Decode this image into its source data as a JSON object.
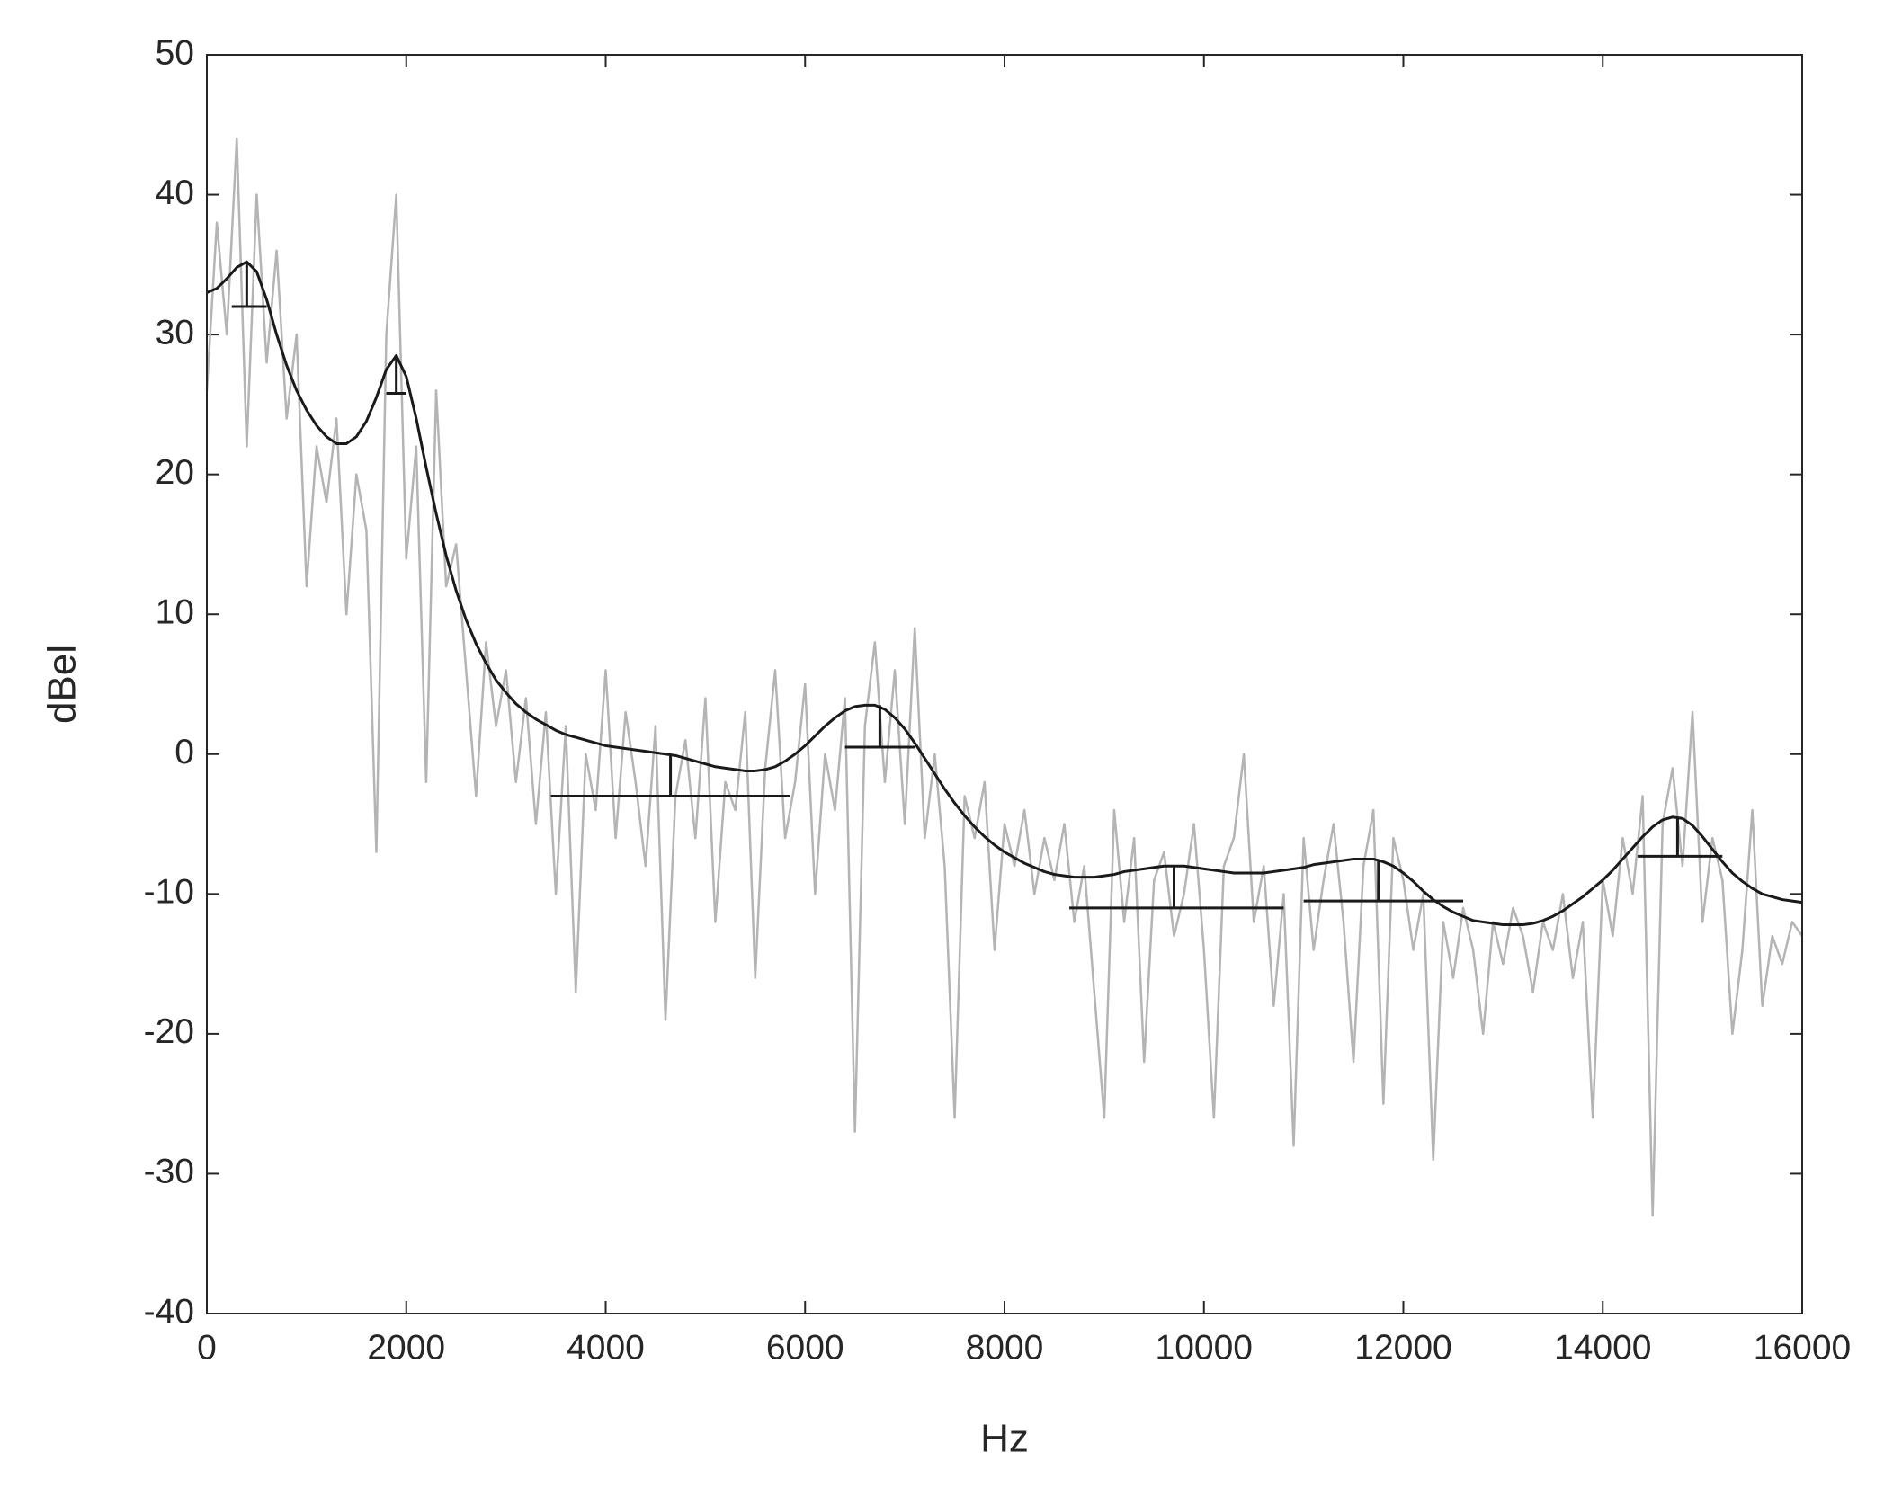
{
  "chart_data": {
    "type": "line",
    "xlabel": "Hz",
    "ylabel": "dBel",
    "xlim": [
      0,
      16000
    ],
    "xticks": [
      0,
      2000,
      4000,
      6000,
      8000,
      10000,
      12000,
      14000,
      16000
    ],
    "ylim": [
      -40,
      50
    ],
    "yticks": [
      -40,
      -30,
      -20,
      -10,
      0,
      10,
      20,
      30,
      40,
      50
    ],
    "x": [
      0,
      100,
      200,
      300,
      400,
      500,
      600,
      700,
      800,
      900,
      1000,
      1100,
      1200,
      1300,
      1400,
      1500,
      1600,
      1700,
      1800,
      1900,
      2000,
      2100,
      2200,
      2300,
      2400,
      2500,
      2600,
      2700,
      2800,
      2900,
      3000,
      3100,
      3200,
      3300,
      3400,
      3500,
      3600,
      3700,
      3800,
      3900,
      4000,
      4100,
      4200,
      4300,
      4400,
      4500,
      4600,
      4700,
      4800,
      4900,
      5000,
      5100,
      5200,
      5300,
      5400,
      5500,
      5600,
      5700,
      5800,
      5900,
      6000,
      6100,
      6200,
      6300,
      6400,
      6500,
      6600,
      6700,
      6800,
      6900,
      7000,
      7100,
      7200,
      7300,
      7400,
      7500,
      7600,
      7700,
      7800,
      7900,
      8000,
      8100,
      8200,
      8300,
      8400,
      8500,
      8600,
      8700,
      8800,
      8900,
      9000,
      9100,
      9200,
      9300,
      9400,
      9500,
      9600,
      9700,
      9800,
      9900,
      10000,
      10100,
      10200,
      10300,
      10400,
      10500,
      10600,
      10700,
      10800,
      10900,
      11000,
      11100,
      11200,
      11300,
      11400,
      11500,
      11600,
      11700,
      11800,
      11900,
      12000,
      12100,
      12200,
      12300,
      12400,
      12500,
      12600,
      12700,
      12800,
      12900,
      13000,
      13100,
      13200,
      13300,
      13400,
      13500,
      13600,
      13700,
      13800,
      13900,
      14000,
      14100,
      14200,
      14300,
      14400,
      14500,
      14600,
      14700,
      14800,
      14900,
      15000,
      15100,
      15200,
      15300,
      15400,
      15500,
      15600,
      15700,
      15800,
      15900,
      16000
    ],
    "series": [
      {
        "color": "#b4b4b4",
        "values": [
          26,
          38,
          30,
          44,
          22,
          40,
          28,
          36,
          24,
          30,
          12,
          22,
          18,
          24,
          10,
          20,
          16,
          -7,
          30,
          40,
          14,
          22,
          -2,
          26,
          12,
          15,
          6,
          -3,
          8,
          2,
          6,
          -2,
          4,
          -5,
          3,
          -10,
          2,
          -17,
          0,
          -4,
          6,
          -6,
          3,
          -2,
          -8,
          2,
          -19,
          -3,
          1,
          -6,
          4,
          -12,
          -2,
          -4,
          3,
          -16,
          -1,
          6,
          -6,
          -2,
          5,
          -10,
          0,
          -4,
          4,
          -27,
          2,
          8,
          -2,
          6,
          -5,
          9,
          -6,
          0,
          -8,
          -26,
          -3,
          -6,
          -2,
          -14,
          -5,
          -8,
          -4,
          -10,
          -6,
          -9,
          -5,
          -12,
          -8,
          -17,
          -26,
          -4,
          -12,
          -6,
          -22,
          -9,
          -7,
          -13,
          -10,
          -5,
          -14,
          -26,
          -8,
          -6,
          0,
          -12,
          -8,
          -18,
          -10,
          -28,
          -6,
          -14,
          -9,
          -5,
          -12,
          -22,
          -8,
          -4,
          -25,
          -6,
          -9,
          -14,
          -10,
          -29,
          -12,
          -16,
          -11,
          -14,
          -20,
          -12,
          -15,
          -11,
          -13,
          -17,
          -12,
          -14,
          -10,
          -16,
          -12,
          -26,
          -9,
          -13,
          -6,
          -10,
          -3,
          -33,
          -5,
          -1,
          -8,
          3,
          -12,
          -6,
          -9,
          -20,
          -14,
          -4,
          -18,
          -13,
          -15,
          -12,
          -13
        ]
      },
      {
        "color": "#1a1a1a",
        "values": [
          33,
          33.3,
          34,
          34.8,
          35.2,
          34.5,
          32.5,
          30,
          27.8,
          26,
          24.6,
          23.5,
          22.7,
          22.2,
          22.2,
          22.7,
          23.8,
          25.5,
          27.5,
          28.5,
          27,
          24,
          20.5,
          17.2,
          14.2,
          11.7,
          9.6,
          7.9,
          6.5,
          5.3,
          4.4,
          3.6,
          3,
          2.5,
          2.1,
          1.7,
          1.4,
          1.2,
          1,
          0.8,
          0.6,
          0.5,
          0.4,
          0.3,
          0.2,
          0.1,
          0,
          -0.1,
          -0.3,
          -0.5,
          -0.7,
          -0.9,
          -1,
          -1.1,
          -1.2,
          -1.2,
          -1.1,
          -0.9,
          -0.5,
          0,
          0.6,
          1.3,
          2,
          2.6,
          3.1,
          3.4,
          3.5,
          3.5,
          3.2,
          2.6,
          1.8,
          0.8,
          -0.3,
          -1.4,
          -2.5,
          -3.5,
          -4.4,
          -5.2,
          -5.9,
          -6.5,
          -7,
          -7.4,
          -7.8,
          -8.1,
          -8.4,
          -8.6,
          -8.7,
          -8.8,
          -8.8,
          -8.8,
          -8.7,
          -8.6,
          -8.4,
          -8.3,
          -8.2,
          -8.1,
          -8,
          -8,
          -8,
          -8.1,
          -8.2,
          -8.3,
          -8.4,
          -8.5,
          -8.5,
          -8.5,
          -8.5,
          -8.4,
          -8.3,
          -8.2,
          -8.1,
          -7.9,
          -7.8,
          -7.7,
          -7.6,
          -7.5,
          -7.5,
          -7.5,
          -7.7,
          -8,
          -8.5,
          -9.1,
          -9.8,
          -10.4,
          -10.9,
          -11.3,
          -11.6,
          -11.9,
          -12,
          -12.1,
          -12.2,
          -12.2,
          -12.2,
          -12.1,
          -11.9,
          -11.6,
          -11.2,
          -10.7,
          -10.2,
          -9.6,
          -9,
          -8.3,
          -7.5,
          -6.7,
          -5.9,
          -5.2,
          -4.7,
          -4.5,
          -4.6,
          -5.1,
          -5.9,
          -6.8,
          -7.7,
          -8.5,
          -9.1,
          -9.6,
          -10,
          -10.2,
          -10.4,
          -10.5,
          -10.6
        ]
      }
    ],
    "markers": [
      {
        "x": 400,
        "peak": 35.2,
        "base": 32,
        "x_range": [
          250,
          600
        ]
      },
      {
        "x": 1900,
        "peak": 28.5,
        "base": 25.8,
        "x_range": [
          1800,
          2000
        ]
      },
      {
        "x": 4650,
        "peak": 0,
        "base": -3,
        "x_range": [
          3450,
          5850
        ]
      },
      {
        "x": 6750,
        "peak": 3.5,
        "base": 0.5,
        "x_range": [
          6400,
          7100
        ]
      },
      {
        "x": 9700,
        "peak": -8,
        "base": -11,
        "x_range": [
          8650,
          10800
        ]
      },
      {
        "x": 11750,
        "peak": -7.5,
        "base": -10.5,
        "x_range": [
          11000,
          12600
        ]
      },
      {
        "x": 14750,
        "peak": -4.5,
        "base": -7.3,
        "x_range": [
          14350,
          15200
        ]
      }
    ],
    "marker_color": "#1a1a1a"
  }
}
